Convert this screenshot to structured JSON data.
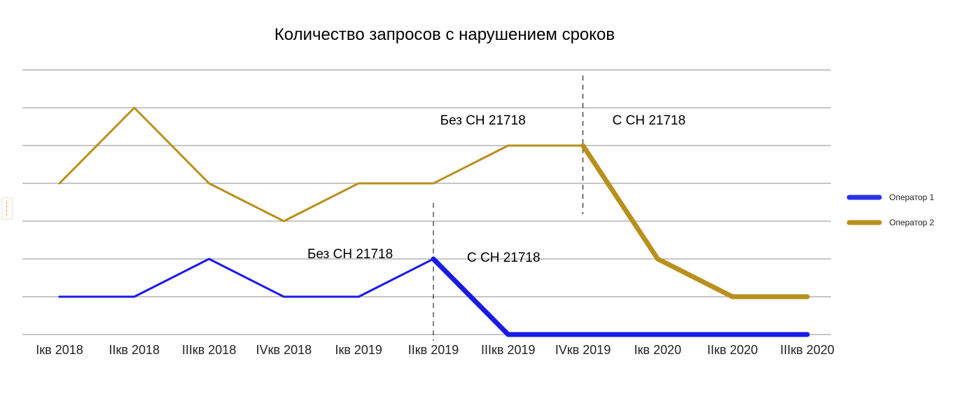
{
  "chart_data": {
    "type": "line",
    "title": "Количество запросов с нарушением сроков",
    "categories": [
      "Iкв 2018",
      "IIкв 2018",
      "IIIкв 2018",
      "IVкв 2018",
      "Iкв 2019",
      "IIкв 2019",
      "IIIкв 2019",
      "IVкв 2019",
      "Iкв 2020",
      "IIкв 2020",
      "IIIкв 2020"
    ],
    "ylim": [
      0,
      7
    ],
    "grid": true,
    "y_tick_labels_shown": false,
    "series": [
      {
        "name": "Оператор 1",
        "color": "#1a1ae6",
        "legend_color": "#2a32e8",
        "values": [
          1,
          1,
          2,
          1,
          1,
          2,
          0,
          0,
          0,
          0,
          0
        ],
        "thick_from_index": 5
      },
      {
        "name": "Оператор 2",
        "color": "#b8901e",
        "legend_color": "#b8901e",
        "values": [
          4,
          6,
          4,
          3,
          4,
          4,
          5,
          5,
          2,
          1,
          1
        ],
        "thick_from_index": 7
      }
    ],
    "annotations": [
      {
        "text": "Без СН 21718",
        "series": "Оператор 1",
        "divider_at": "IIкв 2019",
        "side": "before"
      },
      {
        "text": "С СН 21718",
        "series": "Оператор 1",
        "divider_at": "IIкв 2019",
        "side": "after"
      },
      {
        "text": "Без СН 21718",
        "series": "Оператор 2",
        "divider_at": "IVкв 2019",
        "side": "before"
      },
      {
        "text": "С СН 21718",
        "series": "Оператор 2",
        "divider_at": "IVкв 2019",
        "side": "after"
      }
    ],
    "legend_position": "right"
  }
}
